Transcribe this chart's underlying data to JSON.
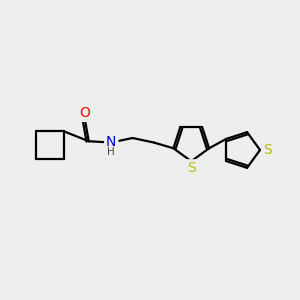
{
  "background_color": "#eeeeee",
  "bond_color": "#000000",
  "O_color": "#ff0000",
  "N_color": "#0000cc",
  "S_color": "#bbbb00",
  "line_width": 1.6,
  "font_size_atoms": 10,
  "dbl_sep": 0.1,
  "figsize": [
    3.0,
    3.0
  ],
  "dpi": 100,
  "xlim": [
    0,
    12
  ],
  "ylim": [
    0,
    10
  ]
}
